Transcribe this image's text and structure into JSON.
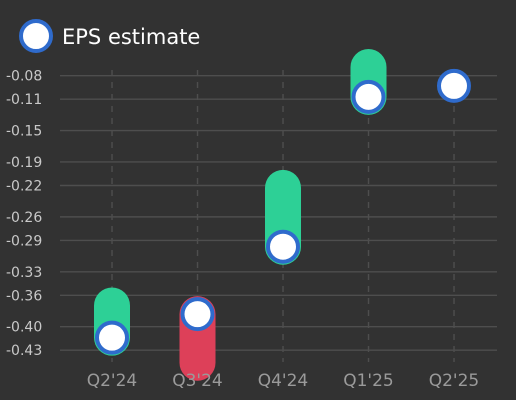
{
  "chart_data": {
    "type": "range-dot",
    "legend": {
      "label": "EPS estimate",
      "placement": "top-left"
    },
    "categories": [
      "Q2'24",
      "Q3'24",
      "Q4'24",
      "Q1'25",
      "Q2'25"
    ],
    "series": [
      {
        "name": "EPS estimate",
        "values": [
          -0.414,
          -0.384,
          -0.298,
          -0.107,
          -0.093
        ]
      },
      {
        "name": "",
        "values": [
          -0.373,
          -0.446,
          -0.223,
          -0.069,
          null
        ]
      }
    ],
    "y_ticks": [
      "-0.08",
      "-0.11",
      "-0.15",
      "-0.19",
      "-0.22",
      "-0.26",
      "-0.29",
      "-0.33",
      "-0.36",
      "-0.40",
      "-0.43"
    ],
    "y_tick_values": [
      -0.08,
      -0.11,
      -0.15,
      -0.19,
      -0.22,
      -0.26,
      -0.29,
      -0.33,
      -0.36,
      -0.4,
      -0.43
    ],
    "ylim": [
      -0.445,
      -0.06
    ],
    "grid": {
      "horizontal": true,
      "vertical": "dashed"
    },
    "colors": {
      "background": "#323232",
      "grid": "#4e4e4e",
      "beat": "#2dd096",
      "miss": "#dd4059",
      "marker_fill": "#ffffff",
      "marker_stroke": "#2f6bcc"
    }
  }
}
